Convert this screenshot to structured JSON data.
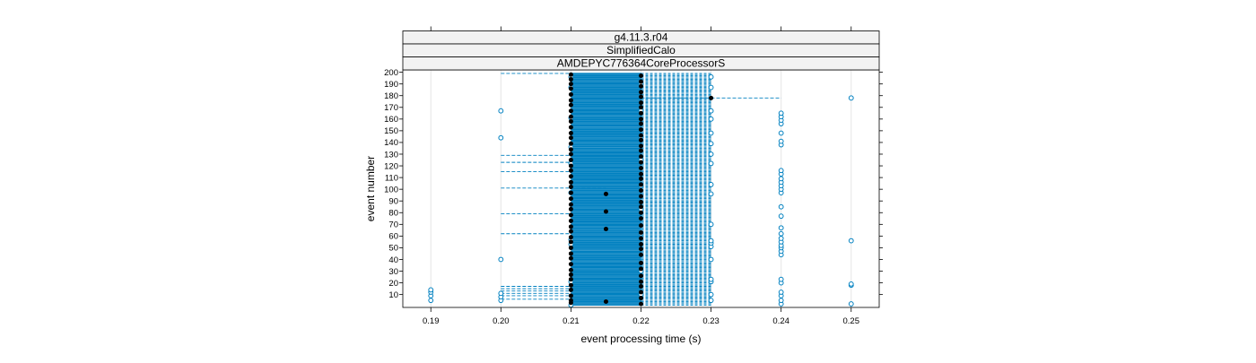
{
  "chart_data": {
    "type": "scatter",
    "strips": [
      "g4.11.3.r04",
      "SimplifiedCalo",
      "AMDEPYC776364CoreProcessorS"
    ],
    "xlabel": "event processing time (s)",
    "ylabel": "event number",
    "xlim": [
      0.186,
      0.254
    ],
    "ylim": [
      -1,
      202
    ],
    "xticks": [
      0.19,
      0.2,
      0.21,
      0.22,
      0.23,
      0.24,
      0.25
    ],
    "xtick_labels": [
      "0.19",
      "0.20",
      "0.21",
      "0.22",
      "0.23",
      "0.24",
      "0.25"
    ],
    "yticks": [
      10,
      20,
      30,
      40,
      50,
      60,
      70,
      80,
      90,
      100,
      110,
      120,
      130,
      140,
      150,
      160,
      170,
      180,
      190,
      200
    ],
    "ytick_labels": [
      "10",
      "20",
      "30",
      "40",
      "50",
      "60",
      "70",
      "80",
      "90",
      "100",
      "110",
      "120",
      "130",
      "140",
      "150",
      "160",
      "170",
      "180",
      "190",
      "200"
    ],
    "grid": true,
    "colors": {
      "open_marker": "#0080c0",
      "dashed_line": "#0080c0",
      "filled_marker": "#000000",
      "strip_bg": "#f2f2f2",
      "grid": "#e6e6e6"
    },
    "series": [
      {
        "marker": "filled",
        "points": [
          [
            0.21,
            3
          ],
          [
            0.21,
            5
          ],
          [
            0.21,
            9
          ],
          [
            0.21,
            14
          ],
          [
            0.21,
            18
          ],
          [
            0.21,
            23
          ],
          [
            0.21,
            27
          ],
          [
            0.21,
            31
          ],
          [
            0.21,
            36
          ],
          [
            0.21,
            41
          ],
          [
            0.21,
            45
          ],
          [
            0.21,
            50
          ],
          [
            0.21,
            55
          ],
          [
            0.21,
            59
          ],
          [
            0.21,
            64
          ],
          [
            0.21,
            68
          ],
          [
            0.21,
            73
          ],
          [
            0.21,
            78
          ],
          [
            0.21,
            83
          ],
          [
            0.21,
            87
          ],
          [
            0.21,
            92
          ],
          [
            0.21,
            97
          ],
          [
            0.21,
            102
          ],
          [
            0.21,
            106
          ],
          [
            0.21,
            111
          ],
          [
            0.21,
            116
          ],
          [
            0.21,
            120
          ],
          [
            0.21,
            125
          ],
          [
            0.21,
            130
          ],
          [
            0.21,
            134
          ],
          [
            0.21,
            139
          ],
          [
            0.21,
            144
          ],
          [
            0.21,
            148
          ],
          [
            0.21,
            153
          ],
          [
            0.21,
            158
          ],
          [
            0.21,
            162
          ],
          [
            0.21,
            167
          ],
          [
            0.21,
            172
          ],
          [
            0.21,
            176
          ],
          [
            0.21,
            181
          ],
          [
            0.21,
            186
          ],
          [
            0.21,
            190
          ],
          [
            0.21,
            194
          ],
          [
            0.21,
            198
          ],
          [
            0.215,
            4
          ],
          [
            0.215,
            66
          ],
          [
            0.215,
            81
          ],
          [
            0.215,
            96
          ],
          [
            0.22,
            2
          ],
          [
            0.22,
            7
          ],
          [
            0.22,
            12
          ],
          [
            0.22,
            17
          ],
          [
            0.22,
            21
          ],
          [
            0.22,
            26
          ],
          [
            0.22,
            32
          ],
          [
            0.22,
            37
          ],
          [
            0.22,
            44
          ],
          [
            0.22,
            49
          ],
          [
            0.22,
            53
          ],
          [
            0.22,
            58
          ],
          [
            0.22,
            63
          ],
          [
            0.22,
            69
          ],
          [
            0.22,
            75
          ],
          [
            0.22,
            80
          ],
          [
            0.22,
            85
          ],
          [
            0.22,
            89
          ],
          [
            0.22,
            94
          ],
          [
            0.22,
            99
          ],
          [
            0.22,
            104
          ],
          [
            0.22,
            109
          ],
          [
            0.22,
            113
          ],
          [
            0.22,
            118
          ],
          [
            0.22,
            123
          ],
          [
            0.22,
            128
          ],
          [
            0.22,
            133
          ],
          [
            0.22,
            137
          ],
          [
            0.22,
            142
          ],
          [
            0.22,
            146
          ],
          [
            0.22,
            151
          ],
          [
            0.22,
            156
          ],
          [
            0.22,
            160
          ],
          [
            0.22,
            165
          ],
          [
            0.22,
            170
          ],
          [
            0.22,
            174
          ],
          [
            0.22,
            179
          ],
          [
            0.22,
            183
          ],
          [
            0.22,
            188
          ],
          [
            0.22,
            192
          ],
          [
            0.22,
            197
          ],
          [
            0.23,
            178
          ]
        ]
      },
      {
        "marker": "open",
        "points": [
          [
            0.19,
            5
          ],
          [
            0.19,
            9
          ],
          [
            0.19,
            12
          ],
          [
            0.19,
            14
          ],
          [
            0.2,
            5
          ],
          [
            0.2,
            8
          ],
          [
            0.2,
            11
          ],
          [
            0.2,
            40
          ],
          [
            0.2,
            144
          ],
          [
            0.2,
            167
          ],
          [
            0.21,
            1
          ],
          [
            0.21,
            21
          ],
          [
            0.21,
            53
          ],
          [
            0.21,
            57
          ],
          [
            0.21,
            97
          ],
          [
            0.21,
            122
          ],
          [
            0.21,
            136
          ],
          [
            0.21,
            161
          ],
          [
            0.21,
            187
          ],
          [
            0.21,
            196
          ],
          [
            0.22,
            10
          ],
          [
            0.22,
            30
          ],
          [
            0.22,
            62
          ],
          [
            0.22,
            83
          ],
          [
            0.22,
            103
          ],
          [
            0.22,
            125
          ],
          [
            0.22,
            145
          ],
          [
            0.22,
            167
          ],
          [
            0.22,
            190
          ],
          [
            0.23,
            5
          ],
          [
            0.23,
            10
          ],
          [
            0.23,
            21
          ],
          [
            0.23,
            23
          ],
          [
            0.23,
            40
          ],
          [
            0.23,
            51
          ],
          [
            0.23,
            54
          ],
          [
            0.23,
            56
          ],
          [
            0.23,
            70
          ],
          [
            0.23,
            96
          ],
          [
            0.23,
            104
          ],
          [
            0.23,
            122
          ],
          [
            0.23,
            130
          ],
          [
            0.23,
            139
          ],
          [
            0.23,
            148
          ],
          [
            0.23,
            160
          ],
          [
            0.23,
            167
          ],
          [
            0.23,
            187
          ],
          [
            0.23,
            196
          ],
          [
            0.24,
            2
          ],
          [
            0.24,
            5
          ],
          [
            0.24,
            9
          ],
          [
            0.24,
            12
          ],
          [
            0.24,
            20
          ],
          [
            0.24,
            23
          ],
          [
            0.24,
            44
          ],
          [
            0.24,
            47
          ],
          [
            0.24,
            50
          ],
          [
            0.24,
            52
          ],
          [
            0.24,
            55
          ],
          [
            0.24,
            58
          ],
          [
            0.24,
            62
          ],
          [
            0.24,
            67
          ],
          [
            0.24,
            77
          ],
          [
            0.24,
            85
          ],
          [
            0.24,
            97
          ],
          [
            0.24,
            100
          ],
          [
            0.24,
            103
          ],
          [
            0.24,
            106
          ],
          [
            0.24,
            109
          ],
          [
            0.24,
            113
          ],
          [
            0.24,
            116
          ],
          [
            0.24,
            138
          ],
          [
            0.24,
            141
          ],
          [
            0.24,
            148
          ],
          [
            0.24,
            156
          ],
          [
            0.24,
            159
          ],
          [
            0.24,
            162
          ],
          [
            0.24,
            165
          ],
          [
            0.25,
            2
          ],
          [
            0.25,
            18
          ],
          [
            0.25,
            19
          ],
          [
            0.25,
            56
          ],
          [
            0.25,
            178
          ]
        ]
      }
    ],
    "segments": [
      {
        "style": "band",
        "x_start": 0.21,
        "x_end": 0.22,
        "y_start": 1,
        "y_end": 199
      },
      {
        "style": "band-dashed",
        "x_start": 0.22,
        "x_end": 0.23,
        "y_start": 1,
        "y_end": 199
      },
      {
        "style": "dashed",
        "x_start": 0.2,
        "x_end": 0.21,
        "y": 6
      },
      {
        "style": "dashed",
        "x_start": 0.2,
        "x_end": 0.21,
        "y": 9
      },
      {
        "style": "dashed",
        "x_start": 0.2,
        "x_end": 0.21,
        "y": 11
      },
      {
        "style": "dashed",
        "x_start": 0.2,
        "x_end": 0.21,
        "y": 13
      },
      {
        "style": "dashed",
        "x_start": 0.2,
        "x_end": 0.21,
        "y": 15
      },
      {
        "style": "dashed",
        "x_start": 0.2,
        "x_end": 0.21,
        "y": 17
      },
      {
        "style": "dashed",
        "x_start": 0.2,
        "x_end": 0.21,
        "y": 62
      },
      {
        "style": "dashed",
        "x_start": 0.2,
        "x_end": 0.21,
        "y": 79
      },
      {
        "style": "dashed",
        "x_start": 0.2,
        "x_end": 0.215,
        "y": 101
      },
      {
        "style": "dashed",
        "x_start": 0.2,
        "x_end": 0.21,
        "y": 115
      },
      {
        "style": "dashed",
        "x_start": 0.2,
        "x_end": 0.21,
        "y": 123
      },
      {
        "style": "dashed",
        "x_start": 0.2,
        "x_end": 0.21,
        "y": 129
      },
      {
        "style": "dashed",
        "x_start": 0.2,
        "x_end": 0.21,
        "y": 199
      },
      {
        "style": "dashed",
        "x_start": 0.21,
        "x_end": 0.215,
        "y": 148
      },
      {
        "style": "dashed",
        "x_start": 0.22,
        "x_end": 0.24,
        "y": 178
      }
    ]
  }
}
